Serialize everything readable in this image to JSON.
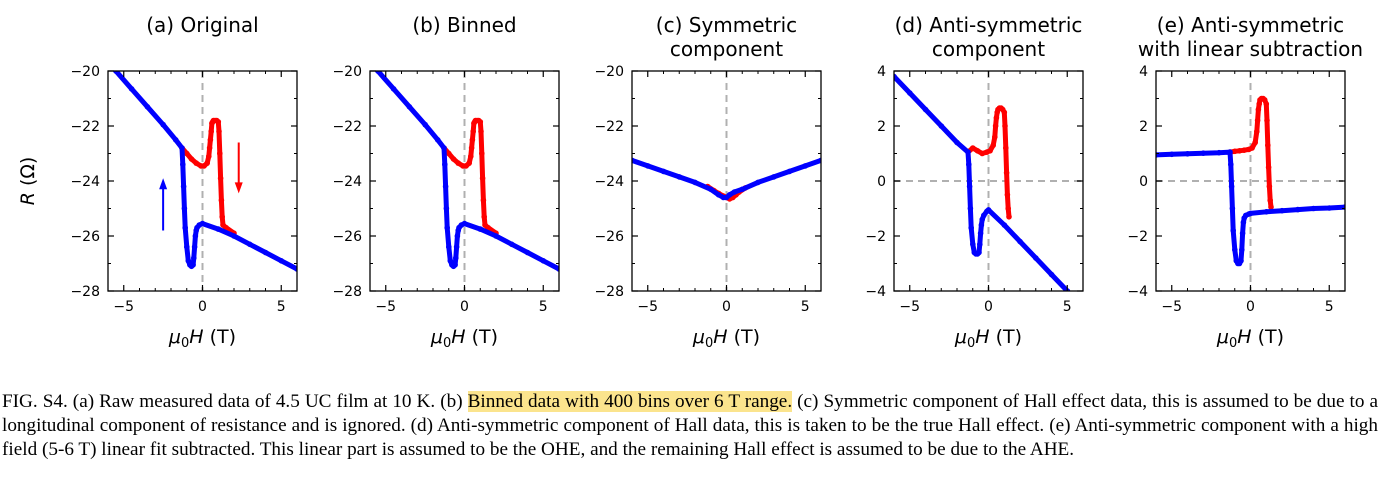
{
  "caption": {
    "prefix": "FIG. S4. (a) Raw measured data of 4.5 UC film at 10 K. (b) ",
    "highlight": "Binned data with 400 bins over 6 T range.",
    "suffix": " (c) Symmetric component of Hall effect data, this is assumed to be due to a longitudinal component of resistance and is ignored. (d) Anti-symmetric component of Hall data, this is taken to be the true Hall effect. (e) Anti-symmetric component with a high field (5-6 T) linear fit subtracted. This linear part is assumed to be the OHE, and the remaining Hall effect is assumed to be due to the AHE."
  },
  "colors": {
    "up_sweep": "#0000ff",
    "down_sweep": "#ff0000",
    "zero_line": "#b0b0b0",
    "highlight": "#fbe48d"
  },
  "chart_data": [
    {
      "type": "line",
      "title": [
        "(a) Original"
      ],
      "xlabel": "μ0H (T)",
      "ylabel": "R (Ω)",
      "xlim": [
        -6,
        6
      ],
      "ylim": [
        -28,
        -20
      ],
      "xticks": [
        -5,
        0,
        5
      ],
      "yticks": [
        -28,
        -26,
        -24,
        -22,
        -20
      ],
      "zero_lines": [
        "x"
      ],
      "arrows": [
        {
          "direction": "up",
          "color": "blue"
        },
        {
          "direction": "down",
          "color": "red"
        }
      ],
      "series": [
        {
          "color": "blue",
          "x": [
            -6,
            -5.5,
            -4.5,
            -3.5,
            -2.5,
            -1.7,
            -1.3,
            -1.25,
            -1.2,
            -1.15,
            -1.1,
            -1.0,
            -0.9,
            -0.8,
            -0.7,
            -0.6,
            -0.55,
            -0.5,
            -0.45,
            -0.4,
            -0.35,
            -0.2,
            0,
            1,
            2,
            3,
            4,
            5,
            6
          ],
          "y": [
            -19.6,
            -20.0,
            -20.65,
            -21.3,
            -21.95,
            -22.5,
            -22.8,
            -23.4,
            -24.2,
            -25.0,
            -25.7,
            -26.4,
            -26.9,
            -27.05,
            -27.1,
            -27.05,
            -26.8,
            -26.4,
            -26.0,
            -25.8,
            -25.7,
            -25.6,
            -25.55,
            -25.75,
            -26.0,
            -26.3,
            -26.6,
            -26.9,
            -27.2
          ]
        },
        {
          "color": "red",
          "x": [
            -1.3,
            -1.0,
            -0.7,
            -0.4,
            -0.1,
            0.1,
            0.3,
            0.4,
            0.45,
            0.5,
            0.55,
            0.6,
            0.65,
            0.7,
            0.8,
            0.9,
            1.0,
            1.05,
            1.1,
            1.15,
            1.2,
            1.25,
            1.3,
            1.5,
            2.0
          ],
          "y": [
            -22.8,
            -23.0,
            -23.2,
            -23.35,
            -23.45,
            -23.45,
            -23.35,
            -23.1,
            -22.8,
            -22.5,
            -22.2,
            -21.9,
            -21.85,
            -21.8,
            -21.8,
            -21.8,
            -21.85,
            -22.2,
            -23.0,
            -23.9,
            -24.7,
            -25.3,
            -25.6,
            -25.7,
            -25.9
          ]
        }
      ]
    },
    {
      "type": "line",
      "title": [
        "(b) Binned"
      ],
      "xlabel": "μ0H (T)",
      "ylabel": "",
      "xlim": [
        -6,
        6
      ],
      "ylim": [
        -28,
        -20
      ],
      "xticks": [
        -5,
        0,
        5
      ],
      "yticks": [
        -28,
        -26,
        -24,
        -22,
        -20
      ],
      "zero_lines": [
        "x"
      ],
      "series": [
        {
          "color": "blue",
          "x": [
            -6,
            -5.5,
            -4.5,
            -3.5,
            -2.5,
            -1.7,
            -1.3,
            -1.25,
            -1.2,
            -1.15,
            -1.1,
            -1.0,
            -0.9,
            -0.8,
            -0.7,
            -0.6,
            -0.55,
            -0.5,
            -0.45,
            -0.4,
            -0.35,
            -0.2,
            0,
            1,
            2,
            3,
            4,
            5,
            6
          ],
          "y": [
            -19.6,
            -20.0,
            -20.65,
            -21.3,
            -21.95,
            -22.5,
            -22.8,
            -23.4,
            -24.2,
            -25.0,
            -25.7,
            -26.4,
            -26.9,
            -27.05,
            -27.1,
            -27.05,
            -26.8,
            -26.4,
            -26.0,
            -25.8,
            -25.7,
            -25.6,
            -25.55,
            -25.75,
            -26.0,
            -26.3,
            -26.6,
            -26.9,
            -27.2
          ]
        },
        {
          "color": "red",
          "x": [
            -1.3,
            -1.0,
            -0.7,
            -0.4,
            -0.1,
            0.1,
            0.3,
            0.4,
            0.45,
            0.5,
            0.55,
            0.6,
            0.65,
            0.7,
            0.8,
            0.9,
            1.0,
            1.05,
            1.1,
            1.15,
            1.2,
            1.25,
            1.3,
            1.5,
            2.0
          ],
          "y": [
            -22.8,
            -23.0,
            -23.2,
            -23.35,
            -23.45,
            -23.45,
            -23.35,
            -23.1,
            -22.8,
            -22.5,
            -22.2,
            -21.9,
            -21.85,
            -21.8,
            -21.8,
            -21.8,
            -21.85,
            -22.2,
            -23.0,
            -23.9,
            -24.7,
            -25.3,
            -25.6,
            -25.7,
            -25.9
          ]
        }
      ]
    },
    {
      "type": "line",
      "title": [
        "(c) Symmetric",
        "component"
      ],
      "xlabel": "μ0H (T)",
      "ylabel": "",
      "xlim": [
        -6,
        6
      ],
      "ylim": [
        -28,
        -20
      ],
      "xticks": [
        -5,
        0,
        5
      ],
      "yticks": [
        -28,
        -26,
        -24,
        -22,
        -20
      ],
      "zero_lines": [
        "x"
      ],
      "series": [
        {
          "color": "blue",
          "x": [
            -6,
            -5,
            -4,
            -3,
            -2,
            -1,
            -0.5,
            -0.2,
            0,
            0.2,
            0.5,
            1,
            2,
            3,
            4,
            5,
            6
          ],
          "y": [
            -23.25,
            -23.45,
            -23.65,
            -23.85,
            -24.05,
            -24.3,
            -24.5,
            -24.6,
            -24.6,
            -24.5,
            -24.4,
            -24.3,
            -24.05,
            -23.85,
            -23.65,
            -23.45,
            -23.25
          ]
        },
        {
          "color": "red",
          "x": [
            -1.2,
            -0.8,
            -0.5,
            -0.2,
            0,
            0.2,
            0.4,
            0.6,
            0.8,
            1.2
          ],
          "y": [
            -24.2,
            -24.35,
            -24.45,
            -24.55,
            -24.6,
            -24.65,
            -24.6,
            -24.5,
            -24.4,
            -24.25
          ]
        }
      ]
    },
    {
      "type": "line",
      "title": [
        "(d) Anti-symmetric",
        "component"
      ],
      "xlabel": "μ0H (T)",
      "ylabel": "",
      "xlim": [
        -6,
        6
      ],
      "ylim": [
        -4,
        4
      ],
      "xticks": [
        -5,
        0,
        5
      ],
      "yticks": [
        -4,
        -2,
        0,
        2,
        4
      ],
      "zero_lines": [
        "x",
        "y"
      ],
      "series": [
        {
          "color": "blue",
          "x": [
            -6,
            -5,
            -4,
            -3,
            -2,
            -1.3,
            -1.25,
            -1.2,
            -1.15,
            -1.1,
            -1.0,
            -0.9,
            -0.8,
            -0.7,
            -0.6,
            -0.55,
            -0.5,
            -0.45,
            -0.4,
            -0.3,
            -0.1,
            0,
            1,
            2,
            3,
            4,
            5,
            6
          ],
          "y": [
            3.8,
            3.2,
            2.6,
            2.0,
            1.4,
            1.05,
            0.6,
            -0.2,
            -1.0,
            -1.7,
            -2.3,
            -2.6,
            -2.65,
            -2.65,
            -2.6,
            -2.3,
            -1.9,
            -1.6,
            -1.4,
            -1.25,
            -1.1,
            -1.05,
            -1.6,
            -2.2,
            -2.8,
            -3.4,
            -4.0,
            -4.6
          ]
        },
        {
          "color": "red",
          "x": [
            -1.3,
            -1.0,
            -0.7,
            -0.4,
            -0.1,
            0.1,
            0.3,
            0.4,
            0.45,
            0.5,
            0.55,
            0.6,
            0.7,
            0.8,
            0.9,
            1.0,
            1.05,
            1.1,
            1.15,
            1.2,
            1.25,
            1.3
          ],
          "y": [
            1.05,
            1.2,
            1.1,
            1.0,
            1.05,
            1.1,
            1.3,
            1.6,
            2.0,
            2.3,
            2.5,
            2.6,
            2.65,
            2.65,
            2.6,
            2.5,
            2.0,
            1.2,
            0.3,
            -0.5,
            -1.0,
            -1.3
          ]
        }
      ]
    },
    {
      "type": "line",
      "title": [
        "(e) Anti-symmetric",
        "with linear subtraction"
      ],
      "xlabel": "μ0H (T)",
      "ylabel": "",
      "xlim": [
        -6,
        6
      ],
      "ylim": [
        -4,
        4
      ],
      "xticks": [
        -5,
        0,
        5
      ],
      "yticks": [
        -4,
        -2,
        0,
        2,
        4
      ],
      "zero_lines": [
        "x",
        "y"
      ],
      "series": [
        {
          "color": "blue",
          "x": [
            -6,
            -5,
            -4,
            -3,
            -2,
            -1.3,
            -1.25,
            -1.2,
            -1.15,
            -1.1,
            -1.0,
            -0.9,
            -0.8,
            -0.7,
            -0.6,
            -0.55,
            -0.5,
            -0.45,
            -0.4,
            -0.3,
            -0.1,
            0,
            1,
            2,
            3,
            4,
            5,
            6
          ],
          "y": [
            0.95,
            0.97,
            0.99,
            1.01,
            1.03,
            1.05,
            0.6,
            -0.2,
            -1.0,
            -1.8,
            -2.5,
            -2.9,
            -3.0,
            -3.0,
            -2.9,
            -2.5,
            -1.9,
            -1.5,
            -1.35,
            -1.25,
            -1.2,
            -1.18,
            -1.12,
            -1.08,
            -1.04,
            -1.0,
            -0.98,
            -0.95
          ]
        },
        {
          "color": "red",
          "x": [
            -1.3,
            -1.0,
            -0.7,
            -0.4,
            -0.1,
            0.1,
            0.3,
            0.4,
            0.45,
            0.5,
            0.55,
            0.6,
            0.7,
            0.8,
            0.9,
            1.0,
            1.05,
            1.1,
            1.15,
            1.2,
            1.25,
            1.3
          ],
          "y": [
            1.05,
            1.08,
            1.1,
            1.12,
            1.15,
            1.2,
            1.4,
            1.8,
            2.2,
            2.6,
            2.8,
            2.95,
            3.0,
            3.0,
            2.95,
            2.8,
            2.2,
            1.3,
            0.5,
            -0.2,
            -0.7,
            -0.95
          ]
        }
      ]
    }
  ]
}
